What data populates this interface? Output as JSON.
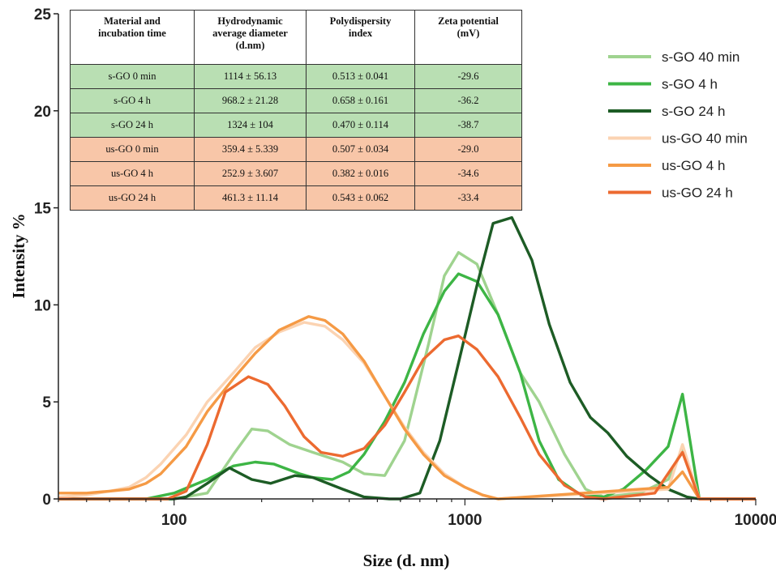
{
  "chart_data": {
    "type": "line",
    "xlabel": "Size (d. nm)",
    "ylabel": "Intensity %",
    "xscale": "log",
    "xlim": [
      40,
      10000
    ],
    "ylim": [
      0,
      25
    ],
    "xticks": [
      "100",
      "1000",
      "10000"
    ],
    "yticks": [
      "0",
      "5",
      "10",
      "15",
      "20",
      "25"
    ],
    "legend_position": "top-right",
    "series": [
      {
        "name": "s-GO 40 min",
        "color": "#9fd38f",
        "points": [
          [
            40,
            0
          ],
          [
            100,
            0
          ],
          [
            130,
            0.3
          ],
          [
            160,
            2.3
          ],
          [
            185,
            3.6
          ],
          [
            210,
            3.5
          ],
          [
            250,
            2.8
          ],
          [
            300,
            2.4
          ],
          [
            380,
            1.9
          ],
          [
            450,
            1.3
          ],
          [
            530,
            1.2
          ],
          [
            620,
            3.0
          ],
          [
            750,
            8.0
          ],
          [
            850,
            11.5
          ],
          [
            950,
            12.7
          ],
          [
            1100,
            12.1
          ],
          [
            1300,
            9.5
          ],
          [
            1550,
            6.5
          ],
          [
            1800,
            5.0
          ],
          [
            2200,
            2.3
          ],
          [
            2600,
            0.5
          ],
          [
            3000,
            0.1
          ],
          [
            4000,
            0.3
          ],
          [
            5000,
            1.0
          ],
          [
            5600,
            2.6
          ],
          [
            6400,
            0
          ],
          [
            10000,
            0
          ]
        ]
      },
      {
        "name": "s-GO 4 h",
        "color": "#3db545",
        "points": [
          [
            40,
            0
          ],
          [
            80,
            0
          ],
          [
            100,
            0.3
          ],
          [
            130,
            1.0
          ],
          [
            160,
            1.7
          ],
          [
            190,
            1.9
          ],
          [
            220,
            1.8
          ],
          [
            270,
            1.3
          ],
          [
            300,
            1.1
          ],
          [
            350,
            1.0
          ],
          [
            400,
            1.4
          ],
          [
            450,
            2.3
          ],
          [
            530,
            4.0
          ],
          [
            620,
            6.0
          ],
          [
            720,
            8.5
          ],
          [
            850,
            10.7
          ],
          [
            950,
            11.6
          ],
          [
            1100,
            11.2
          ],
          [
            1300,
            9.5
          ],
          [
            1550,
            6.5
          ],
          [
            1800,
            3.0
          ],
          [
            2100,
            1.0
          ],
          [
            2500,
            0.2
          ],
          [
            3000,
            0.1
          ],
          [
            3500,
            0.5
          ],
          [
            4200,
            1.5
          ],
          [
            5000,
            2.7
          ],
          [
            5600,
            5.4
          ],
          [
            6400,
            0
          ],
          [
            10000,
            0
          ]
        ]
      },
      {
        "name": "s-GO 24 h",
        "color": "#1d5c25",
        "points": [
          [
            40,
            0
          ],
          [
            100,
            0
          ],
          [
            110,
            0.1
          ],
          [
            130,
            0.8
          ],
          [
            155,
            1.6
          ],
          [
            185,
            1.0
          ],
          [
            215,
            0.8
          ],
          [
            260,
            1.2
          ],
          [
            300,
            1.1
          ],
          [
            380,
            0.5
          ],
          [
            450,
            0.1
          ],
          [
            550,
            0
          ],
          [
            600,
            0
          ],
          [
            700,
            0.3
          ],
          [
            820,
            3.0
          ],
          [
            950,
            7.0
          ],
          [
            1100,
            11.0
          ],
          [
            1250,
            14.2
          ],
          [
            1450,
            14.5
          ],
          [
            1700,
            12.3
          ],
          [
            1950,
            9.0
          ],
          [
            2300,
            6.0
          ],
          [
            2700,
            4.2
          ],
          [
            3100,
            3.4
          ],
          [
            3600,
            2.2
          ],
          [
            4300,
            1.2
          ],
          [
            5000,
            0.5
          ],
          [
            5800,
            0.1
          ],
          [
            6400,
            0
          ],
          [
            10000,
            0
          ]
        ]
      },
      {
        "name": "us-GO 40 min",
        "color": "#fbd3b2",
        "points": [
          [
            40,
            0.1
          ],
          [
            50,
            0.2
          ],
          [
            60,
            0.4
          ],
          [
            70,
            0.6
          ],
          [
            80,
            1.1
          ],
          [
            90,
            1.8
          ],
          [
            110,
            3.3
          ],
          [
            130,
            5.0
          ],
          [
            160,
            6.5
          ],
          [
            190,
            7.8
          ],
          [
            230,
            8.6
          ],
          [
            280,
            9.1
          ],
          [
            330,
            8.9
          ],
          [
            380,
            8.2
          ],
          [
            450,
            7.0
          ],
          [
            530,
            5.3
          ],
          [
            620,
            3.7
          ],
          [
            720,
            2.4
          ],
          [
            850,
            1.3
          ],
          [
            1000,
            0.6
          ],
          [
            1150,
            0.2
          ],
          [
            1300,
            0
          ],
          [
            5000,
            0.5
          ],
          [
            5600,
            2.8
          ],
          [
            6400,
            0
          ],
          [
            10000,
            0
          ]
        ]
      },
      {
        "name": "us-GO 4 h",
        "color": "#f59a45",
        "points": [
          [
            40,
            0.3
          ],
          [
            50,
            0.3
          ],
          [
            60,
            0.4
          ],
          [
            70,
            0.5
          ],
          [
            80,
            0.8
          ],
          [
            90,
            1.3
          ],
          [
            110,
            2.7
          ],
          [
            130,
            4.5
          ],
          [
            160,
            6.2
          ],
          [
            190,
            7.5
          ],
          [
            230,
            8.7
          ],
          [
            290,
            9.4
          ],
          [
            330,
            9.2
          ],
          [
            380,
            8.5
          ],
          [
            450,
            7.1
          ],
          [
            530,
            5.3
          ],
          [
            620,
            3.6
          ],
          [
            720,
            2.3
          ],
          [
            850,
            1.2
          ],
          [
            1000,
            0.6
          ],
          [
            1150,
            0.2
          ],
          [
            1300,
            0
          ],
          [
            5000,
            0.6
          ],
          [
            5600,
            1.4
          ],
          [
            6400,
            0
          ],
          [
            10000,
            0
          ]
        ]
      },
      {
        "name": "us-GO 24 h",
        "color": "#ec6a30",
        "points": [
          [
            40,
            0
          ],
          [
            95,
            0
          ],
          [
            110,
            0.4
          ],
          [
            130,
            2.8
          ],
          [
            150,
            5.5
          ],
          [
            180,
            6.3
          ],
          [
            210,
            5.9
          ],
          [
            240,
            4.8
          ],
          [
            280,
            3.2
          ],
          [
            320,
            2.4
          ],
          [
            380,
            2.2
          ],
          [
            450,
            2.6
          ],
          [
            530,
            3.8
          ],
          [
            620,
            5.5
          ],
          [
            720,
            7.2
          ],
          [
            850,
            8.2
          ],
          [
            950,
            8.4
          ],
          [
            1100,
            7.7
          ],
          [
            1300,
            6.3
          ],
          [
            1550,
            4.2
          ],
          [
            1800,
            2.3
          ],
          [
            2200,
            0.7
          ],
          [
            2600,
            0.1
          ],
          [
            3000,
            0
          ],
          [
            4500,
            0.3
          ],
          [
            5600,
            2.4
          ],
          [
            6400,
            0
          ],
          [
            10000,
            0
          ]
        ]
      }
    ],
    "table": {
      "columns": [
        "Material and incubation time",
        "Hydrodynamic average diameter (d.nm)",
        "Polydispersity index",
        "Zeta potential (mV)"
      ],
      "header_lines": [
        [
          "Material and",
          "incubation time"
        ],
        [
          "Hydrodynamic",
          "average diameter",
          "(d.nm)"
        ],
        [
          "Polydispersity",
          "index"
        ],
        [
          "Zeta potential",
          "(mV)"
        ]
      ],
      "rows": [
        {
          "group": "s",
          "cells": [
            "s-GO 0 min",
            "1114 ± 56.13",
            "0.513 ± 0.041",
            "-29.6"
          ]
        },
        {
          "group": "s",
          "cells": [
            "s-GO 4 h",
            "968.2 ± 21.28",
            "0.658 ± 0.161",
            "-36.2"
          ]
        },
        {
          "group": "s",
          "cells": [
            "s-GO 24 h",
            "1324 ± 104",
            "0.470 ± 0.114",
            "-38.7"
          ]
        },
        {
          "group": "us",
          "cells": [
            "us-GO 0 min",
            "359.4 ± 5.339",
            "0.507 ± 0.034",
            "-29.0"
          ]
        },
        {
          "group": "us",
          "cells": [
            "us-GO 4 h",
            "252.9 ± 3.607",
            "0.382 ± 0.016",
            "-34.6"
          ]
        },
        {
          "group": "us",
          "cells": [
            "us-GO 24 h",
            "461.3 ± 11.14",
            "0.543 ± 0.062",
            "-33.4"
          ]
        }
      ]
    }
  }
}
